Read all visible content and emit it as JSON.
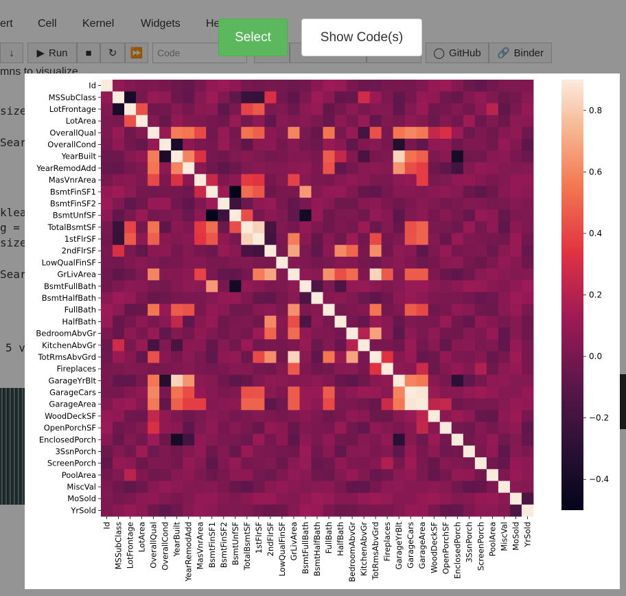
{
  "menu": {
    "items": [
      "ert",
      "Cell",
      "Kernel",
      "Widgets",
      "He"
    ]
  },
  "toolbar": {
    "run_label": "Run",
    "cell_type_placeholder": "Code",
    "download_label": "Download",
    "github_label": "GitHub",
    "binder_label": "Binder"
  },
  "background_text": {
    "line1": "mns to visualize",
    "line2": "size",
    "line3": "Searc",
    "line4": "klea",
    "line5": "g =",
    "line6": "size",
    "line7": "Searc",
    "line8": "5 v"
  },
  "buttons": {
    "select_label": "Select",
    "show_code_label": "Show Code(s)"
  },
  "colors": {
    "select_green": "#5cb85c",
    "cmap_low": "#03051a",
    "cmap_mid": "#e13342",
    "cmap_high": "#faebdd"
  },
  "chart_data": {
    "type": "heatmap",
    "labels": [
      "Id",
      "MSSubClass",
      "LotFrontage",
      "LotArea",
      "OverallQual",
      "OverallCond",
      "YearBuilt",
      "YearRemodAdd",
      "MasVnrArea",
      "BsmtFinSF1",
      "BsmtFinSF2",
      "BsmtUnfSF",
      "TotalBsmtSF",
      "1stFlrSF",
      "2ndFlrSF",
      "LowQualFinSF",
      "GrLivArea",
      "BsmtFullBath",
      "BsmtHalfBath",
      "FullBath",
      "HalfBath",
      "BedroomAbvGr",
      "KitchenAbvGr",
      "TotRmsAbvGrd",
      "Fireplaces",
      "GarageYrBlt",
      "GarageCars",
      "GarageArea",
      "WoodDeckSF",
      "OpenPorchSF",
      "EnclosedPorch",
      "3SsnPorch",
      "ScreenPorch",
      "PoolArea",
      "MiscVal",
      "MoSold",
      "YrSold"
    ],
    "colorbar": {
      "min": -0.5,
      "max": 0.9,
      "ticks": [
        -0.4,
        -0.2,
        0.0,
        0.2,
        0.4,
        0.6,
        0.8
      ]
    },
    "correlations": [
      [
        "YearBuilt",
        "GarageYrBlt",
        0.83
      ],
      [
        "GarageCars",
        "GarageArea",
        0.88
      ],
      [
        "TotalBsmtSF",
        "1stFlrSF",
        0.82
      ],
      [
        "GrLivArea",
        "TotRmsAbvGrd",
        0.83
      ],
      [
        "OverallQual",
        "GrLivArea",
        0.59
      ],
      [
        "OverallQual",
        "GarageCars",
        0.6
      ],
      [
        "OverallQual",
        "GarageArea",
        0.56
      ],
      [
        "OverallQual",
        "YearBuilt",
        0.57
      ],
      [
        "OverallQual",
        "YearRemodAdd",
        0.55
      ],
      [
        "OverallQual",
        "TotalBsmtSF",
        0.54
      ],
      [
        "OverallQual",
        "1stFlrSF",
        0.48
      ],
      [
        "OverallQual",
        "FullBath",
        0.55
      ],
      [
        "OverallQual",
        "GarageYrBlt",
        0.55
      ],
      [
        "OverallQual",
        "MasVnrArea",
        0.41
      ],
      [
        "OverallQual",
        "TotRmsAbvGrd",
        0.43
      ],
      [
        "YearBuilt",
        "YearRemodAdd",
        0.59
      ],
      [
        "YearBuilt",
        "GarageCars",
        0.54
      ],
      [
        "YearBuilt",
        "GarageArea",
        0.48
      ],
      [
        "YearBuilt",
        "FullBath",
        0.47
      ],
      [
        "YearBuilt",
        "OverallCond",
        -0.38
      ],
      [
        "YearBuilt",
        "EnclosedPorch",
        -0.39
      ],
      [
        "YearRemodAdd",
        "GarageYrBlt",
        0.64
      ],
      [
        "YearRemodAdd",
        "GarageCars",
        0.42
      ],
      [
        "YearRemodAdd",
        "GarageArea",
        0.37
      ],
      [
        "YearRemodAdd",
        "FullBath",
        0.44
      ],
      [
        "GrLivArea",
        "2ndFlrSF",
        0.69
      ],
      [
        "GrLivArea",
        "FullBath",
        0.63
      ],
      [
        "GrLivArea",
        "1stFlrSF",
        0.57
      ],
      [
        "GrLivArea",
        "BedroomAbvGr",
        0.52
      ],
      [
        "GrLivArea",
        "HalfBath",
        0.42
      ],
      [
        "GrLivArea",
        "GarageCars",
        0.47
      ],
      [
        "GrLivArea",
        "GarageArea",
        0.47
      ],
      [
        "GrLivArea",
        "Fireplaces",
        0.46
      ],
      [
        "2ndFlrSF",
        "TotRmsAbvGrd",
        0.62
      ],
      [
        "2ndFlrSF",
        "HalfBath",
        0.61
      ],
      [
        "2ndFlrSF",
        "BedroomAbvGr",
        0.5
      ],
      [
        "2ndFlrSF",
        "1stFlrSF",
        -0.2
      ],
      [
        "2ndFlrSF",
        "TotalBsmtSF",
        -0.17
      ],
      [
        "BedroomAbvGr",
        "TotRmsAbvGrd",
        0.68
      ],
      [
        "FullBath",
        "TotRmsAbvGrd",
        0.55
      ],
      [
        "FullBath",
        "GarageCars",
        0.47
      ],
      [
        "FullBath",
        "GarageArea",
        0.41
      ],
      [
        "BsmtFinSF1",
        "BsmtFullBath",
        0.65
      ],
      [
        "BsmtFinSF1",
        "BsmtUnfSF",
        -0.5
      ],
      [
        "BsmtFinSF1",
        "TotalBsmtSF",
        0.52
      ],
      [
        "BsmtFinSF1",
        "1stFlrSF",
        0.45
      ],
      [
        "BsmtFullBath",
        "BsmtUnfSF",
        -0.42
      ],
      [
        "BsmtUnfSF",
        "TotalBsmtSF",
        0.42
      ],
      [
        "BsmtFinSF2",
        "BsmtUnfSF",
        -0.21
      ],
      [
        "TotalBsmtSF",
        "GarageArea",
        0.49
      ],
      [
        "TotalBsmtSF",
        "GarageCars",
        0.43
      ],
      [
        "1stFlrSF",
        "GarageArea",
        0.49
      ],
      [
        "1stFlrSF",
        "GarageCars",
        0.44
      ],
      [
        "1stFlrSF",
        "TotRmsAbvGrd",
        0.41
      ],
      [
        "1stFlrSF",
        "LotFrontage",
        0.46
      ],
      [
        "TotalBsmtSF",
        "LotFrontage",
        0.39
      ],
      [
        "LotFrontage",
        "LotArea",
        0.43
      ],
      [
        "LotFrontage",
        "MSSubClass",
        -0.39
      ],
      [
        "MSSubClass",
        "TotalBsmtSF",
        -0.24
      ],
      [
        "MSSubClass",
        "1stFlrSF",
        -0.25
      ],
      [
        "MSSubClass",
        "2ndFlrSF",
        0.31
      ],
      [
        "MSSubClass",
        "KitchenAbvGr",
        0.28
      ],
      [
        "GarageYrBlt",
        "GarageCars",
        0.59
      ],
      [
        "GarageYrBlt",
        "GarageArea",
        0.56
      ],
      [
        "GarageYrBlt",
        "EnclosedPorch",
        -0.3
      ],
      [
        "GarageYrBlt",
        "OverallCond",
        -0.33
      ],
      [
        "OverallCond",
        "YearRemodAdd",
        0.07
      ],
      [
        "Fireplaces",
        "TotRmsAbvGrd",
        0.33
      ],
      [
        "Fireplaces",
        "GarageArea",
        0.27
      ],
      [
        "WoodDeckSF",
        "OpenPorchSF",
        0.06
      ],
      [
        "GarageArea",
        "WoodDeckSF",
        0.22
      ],
      [
        "GarageArea",
        "OpenPorchSF",
        0.24
      ],
      [
        "OverallQual",
        "OpenPorchSF",
        0.31
      ],
      [
        "OverallQual",
        "WoodDeckSF",
        0.24
      ],
      [
        "EnclosedPorch",
        "YearRemodAdd",
        -0.19
      ],
      [
        "MasVnrArea",
        "YearBuilt",
        0.32
      ],
      [
        "MasVnrArea",
        "GrLivArea",
        0.39
      ],
      [
        "MasVnrArea",
        "GarageArea",
        0.37
      ],
      [
        "MasVnrArea",
        "TotalBsmtSF",
        0.36
      ],
      [
        "MasVnrArea",
        "1stFlrSF",
        0.34
      ],
      [
        "MasVnrArea",
        "BsmtFinSF1",
        0.26
      ],
      [
        "KitchenAbvGr",
        "BedroomAbvGr",
        0.2
      ],
      [
        "KitchenAbvGr",
        "YearBuilt",
        -0.17
      ],
      [
        "KitchenAbvGr",
        "OverallQual",
        -0.18
      ],
      [
        "PoolArea",
        "LotFrontage",
        0.21
      ],
      [
        "ScreenPorch",
        "Fireplaces",
        0.18
      ],
      [
        "MoSold",
        "YrSold",
        -0.15
      ],
      [
        "HalfBath",
        "YearBuilt",
        0.24
      ],
      [
        "HalfBath",
        "BsmtFullBath",
        -0.15
      ],
      [
        "BsmtHalfBath",
        "BsmtFullBath",
        -0.15
      ]
    ]
  }
}
